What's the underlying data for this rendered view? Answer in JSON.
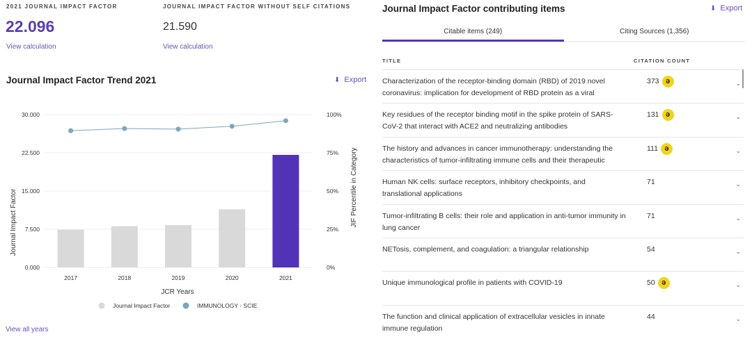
{
  "metrics": {
    "jif_label": "2021 JOURNAL IMPACT FACTOR",
    "jif_value": "22.096",
    "jif_link": "View calculation",
    "jif_wo_label": "JOURNAL IMPACT FACTOR WITHOUT SELF CITATIONS",
    "jif_wo_value": "21.590",
    "jif_wo_link": "View calculation"
  },
  "trend": {
    "title": "Journal Impact Factor Trend 2021",
    "export": "Export",
    "view_all": "View all years"
  },
  "chart_data": {
    "type": "bar",
    "categories": [
      "2017",
      "2018",
      "2019",
      "2020",
      "2021"
    ],
    "series": [
      {
        "name": "Journal Impact Factor",
        "type": "bar",
        "axis": "left",
        "values": [
          7.4,
          8.1,
          8.3,
          11.4,
          22.096
        ],
        "colors": [
          "#d9d9d9",
          "#d9d9d9",
          "#d9d9d9",
          "#d9d9d9",
          "#5233b8"
        ]
      },
      {
        "name": "IMMUNOLOGY - SCIE",
        "type": "line",
        "axis": "right",
        "values": [
          89.5,
          90.9,
          90.5,
          92.4,
          96.0
        ],
        "color": "#7ba7ba"
      }
    ],
    "xlabel": "JCR Years",
    "ylabel": "Journal Impact Factor",
    "y2label": "JIF Percentile in Category",
    "ylim": [
      0,
      30
    ],
    "y2lim": [
      0,
      100
    ],
    "yticks": [
      "0.000",
      "7.500",
      "15.000",
      "22.500",
      "30.000"
    ],
    "y2ticks": [
      "0%",
      "25%",
      "50%",
      "75%",
      "100%"
    ],
    "grid": true,
    "legend": "bottom"
  },
  "items": {
    "title": "Journal Impact Factor contributing items",
    "export": "Export",
    "tabs": [
      {
        "label": "Citable items (249)"
      },
      {
        "label": "Citing Sources (1,356)"
      }
    ],
    "col_title": "TITLE",
    "col_count": "CITATION COUNT",
    "rows": [
      {
        "title": "Characterization of the receptor-binding domain (RBD) of 2019 novel coronavirus: implication for development of RBD protein as a viral",
        "count": "373",
        "oa": true
      },
      {
        "title": "Key residues of the receptor binding motif in the spike protein of SARS-CoV-2 that interact with ACE2 and neutralizing antibodies",
        "count": "131",
        "oa": true
      },
      {
        "title": "The history and advances in cancer immunotherapy: understanding the characteristics of tumor-infiltrating immune cells and their therapeutic",
        "count": "111",
        "oa": true
      },
      {
        "title": "Human NK cells: surface receptors, inhibitory checkpoints, and translational applications",
        "count": "71",
        "oa": false
      },
      {
        "title": "Tumor-infiltrating B cells: their role and application in anti-tumor immunity in lung cancer",
        "count": "71",
        "oa": false
      },
      {
        "title": "NETosis, complement, and coagulation: a triangular relationship",
        "count": "54",
        "oa": false
      },
      {
        "title": "Unique immunological profile in patients with COVID-19",
        "count": "50",
        "oa": true
      },
      {
        "title": "The function and clinical application of extracellular vesicles in innate immune regulation",
        "count": "44",
        "oa": false
      }
    ]
  }
}
